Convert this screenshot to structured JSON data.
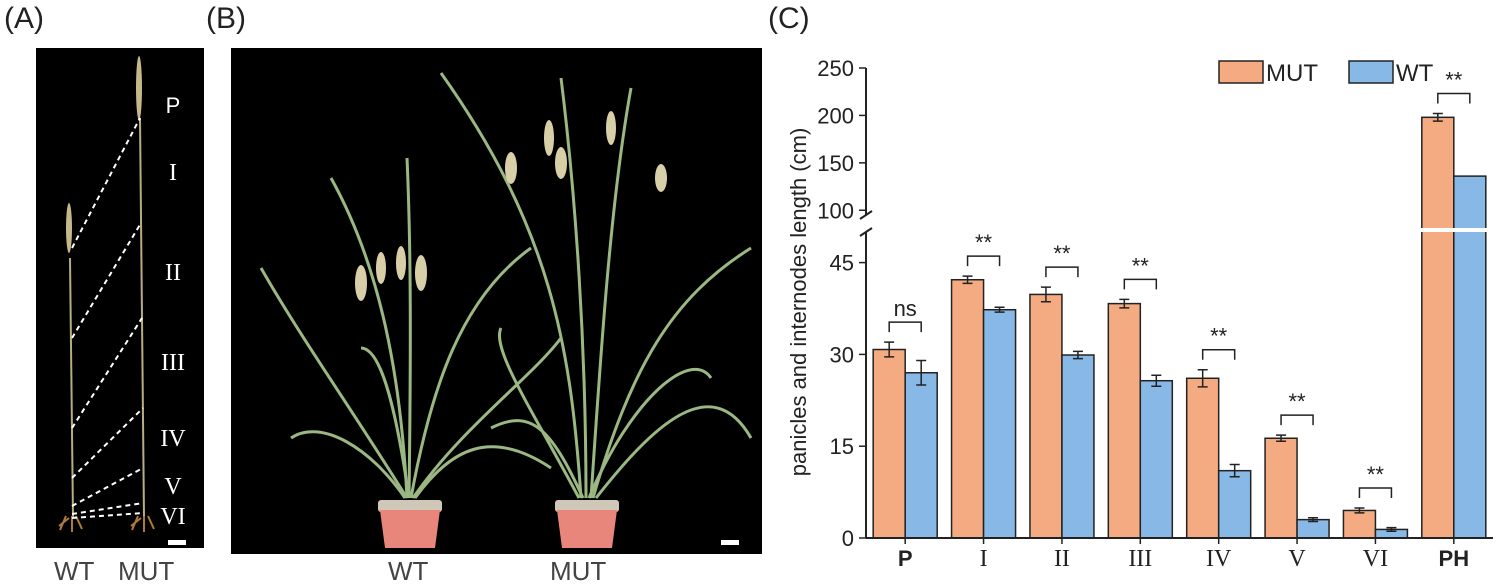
{
  "panels": {
    "a": {
      "label": "(A)",
      "segment_labels": [
        "P",
        "I",
        "II",
        "III",
        "IV",
        "V",
        "VI"
      ],
      "bottom_labels": [
        "WT",
        "MUT"
      ]
    },
    "b": {
      "label": "(B)",
      "bottom_labels": [
        "WT",
        "MUT"
      ]
    },
    "c": {
      "label": "(C)"
    }
  },
  "colors": {
    "mut": "#f4ab82",
    "wt": "#88b8e6",
    "photo_bg": "#000000",
    "plant": "#9bb782",
    "pot": "#e9867b"
  },
  "chart_data": {
    "type": "bar",
    "categories": [
      "P",
      "I",
      "II",
      "III",
      "IV",
      "V",
      "VI",
      "PH"
    ],
    "series": [
      {
        "name": "MUT",
        "values": [
          30.8,
          42.2,
          39.8,
          38.3,
          26.1,
          16.3,
          4.5,
          198
        ],
        "errors": [
          1.2,
          0.6,
          1.2,
          0.7,
          1.4,
          0.5,
          0.4,
          4
        ]
      },
      {
        "name": "WT",
        "values": [
          27.0,
          37.3,
          29.9,
          25.7,
          11.0,
          3.0,
          1.4,
          136
        ],
        "errors": [
          2.0,
          0.4,
          0.6,
          0.9,
          1.0,
          0.3,
          0.3,
          0
        ]
      }
    ],
    "significance": [
      "ns",
      "**",
      "**",
      "**",
      "**",
      "**",
      "**",
      "**"
    ],
    "ylabel": "panicles and internodes length (cm)",
    "y_lower": {
      "range": [
        0,
        50
      ],
      "ticks": [
        0,
        15,
        30,
        45
      ]
    },
    "y_upper": {
      "range": [
        95,
        250
      ],
      "ticks": [
        100,
        150,
        200,
        250
      ]
    },
    "axis_break": true,
    "legend": {
      "position": "top-right",
      "entries": [
        "MUT",
        "WT"
      ]
    }
  }
}
